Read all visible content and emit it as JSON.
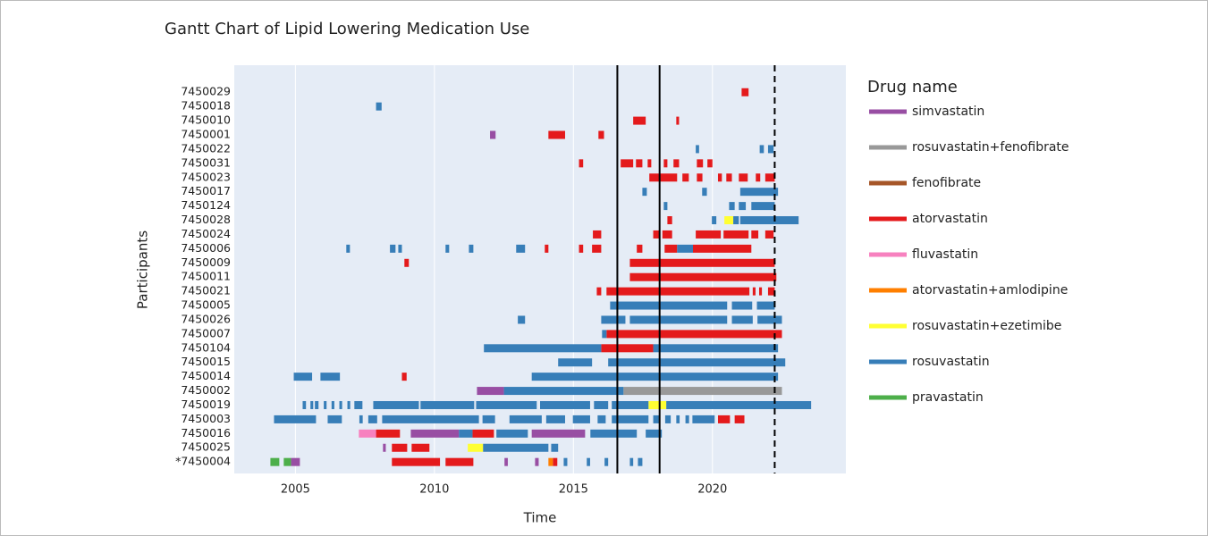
{
  "chart_data": {
    "type": "gantt",
    "title": "Gantt Chart of Lipid Lowering Medication Use",
    "x_label": "Time",
    "y_label": "Participants",
    "legend_title": "Drug name",
    "categories": [
      "7450029",
      "7450018",
      "7450010",
      "7450001",
      "7450022",
      "7450031",
      "7450023",
      "7450017",
      "7450124",
      "7450028",
      "7450024",
      "7450006",
      "7450009",
      "7450011",
      "7450021",
      "7450005",
      "7450026",
      "7450007",
      "7450104",
      "7450015",
      "7450014",
      "7450002",
      "7450019",
      "7450003",
      "7450016",
      "7450025",
      "*7450004"
    ],
    "xlim": [
      2002.8,
      2024.8
    ],
    "xticks": [
      2005,
      2010,
      2015,
      2020
    ],
    "grid": true,
    "reference_lines": [
      {
        "x": 2016.58,
        "dashed": false
      },
      {
        "x": 2018.1,
        "dashed": false
      },
      {
        "x": 2022.24,
        "dashed": true
      }
    ],
    "series": [
      {
        "name": "simvastatin",
        "color": "#984ea3",
        "bars": [
          [
            "7450001",
            2012.0,
            2012.2
          ],
          [
            "7450002",
            2011.53,
            2012.5
          ],
          [
            "7450016",
            2009.15,
            2010.88
          ],
          [
            "7450016",
            2013.5,
            2015.42
          ],
          [
            "7450025",
            2008.15,
            2008.25
          ],
          [
            "*7450004",
            2004.84,
            2005.16
          ],
          [
            "*7450004",
            2012.52,
            2012.64
          ],
          [
            "*7450004",
            2013.62,
            2013.75
          ]
        ]
      },
      {
        "name": "rosuvastatin+fenofibrate",
        "color": "#999999",
        "bars": [
          [
            "7450002",
            2016.8,
            2022.5
          ]
        ]
      },
      {
        "name": "fenofibrate",
        "color": "#a65628",
        "bars": []
      },
      {
        "name": "atorvastatin",
        "color": "#e41a1c",
        "bars": [
          [
            "7450029",
            2021.05,
            2021.3
          ],
          [
            "7450010",
            2017.15,
            2017.6
          ],
          [
            "7450010",
            2018.7,
            2018.8
          ],
          [
            "7450001",
            2014.1,
            2014.7
          ],
          [
            "7450001",
            2015.9,
            2016.1
          ],
          [
            "7450031",
            2015.2,
            2015.35
          ],
          [
            "7450031",
            2016.7,
            2017.15
          ],
          [
            "7450031",
            2017.25,
            2017.48
          ],
          [
            "7450031",
            2017.67,
            2017.8
          ],
          [
            "7450031",
            2018.25,
            2018.38
          ],
          [
            "7450031",
            2018.6,
            2018.8
          ],
          [
            "7450031",
            2019.44,
            2019.66
          ],
          [
            "7450031",
            2019.82,
            2020.0
          ],
          [
            "7450023",
            2017.73,
            2018.73
          ],
          [
            "7450023",
            2018.92,
            2019.15
          ],
          [
            "7450023",
            2019.44,
            2019.64
          ],
          [
            "7450023",
            2020.2,
            2020.34
          ],
          [
            "7450023",
            2020.5,
            2020.7
          ],
          [
            "7450023",
            2020.95,
            2021.27
          ],
          [
            "7450023",
            2021.56,
            2021.72
          ],
          [
            "7450023",
            2021.9,
            2022.24
          ],
          [
            "7450028",
            2018.38,
            2018.55
          ],
          [
            "7450024",
            2015.7,
            2016.0
          ],
          [
            "7450024",
            2017.87,
            2018.1
          ],
          [
            "7450024",
            2018.2,
            2018.55
          ],
          [
            "7450024",
            2019.4,
            2020.3
          ],
          [
            "7450024",
            2020.4,
            2021.3
          ],
          [
            "7450024",
            2021.4,
            2021.65
          ],
          [
            "7450024",
            2021.9,
            2022.2
          ],
          [
            "7450006",
            2013.97,
            2014.1
          ],
          [
            "7450006",
            2015.2,
            2015.35
          ],
          [
            "7450006",
            2015.67,
            2016.0
          ],
          [
            "7450006",
            2017.28,
            2017.48
          ],
          [
            "7450006",
            2018.28,
            2018.73
          ],
          [
            "7450006",
            2019.3,
            2021.4
          ],
          [
            "7450009",
            2008.92,
            2009.08
          ],
          [
            "7450009",
            2017.03,
            2022.24
          ],
          [
            "7450011",
            2017.03,
            2022.3
          ],
          [
            "7450021",
            2015.84,
            2016.0
          ],
          [
            "7450021",
            2016.19,
            2021.33
          ],
          [
            "7450021",
            2021.45,
            2021.55
          ],
          [
            "7450021",
            2021.68,
            2021.78
          ],
          [
            "7450021",
            2022.0,
            2022.24
          ],
          [
            "7450007",
            2016.19,
            2022.5
          ],
          [
            "7450104",
            2016.0,
            2017.87
          ],
          [
            "7450014",
            2008.83,
            2009.0
          ],
          [
            "7450003",
            2020.2,
            2020.63
          ],
          [
            "7450003",
            2020.8,
            2021.15
          ],
          [
            "7450016",
            2007.9,
            2008.76
          ],
          [
            "7450016",
            2011.37,
            2012.14
          ],
          [
            "7450025",
            2008.47,
            2009.02
          ],
          [
            "7450025",
            2009.18,
            2009.82
          ],
          [
            "*7450004",
            2008.47,
            2010.2
          ],
          [
            "*7450004",
            2010.4,
            2011.4
          ],
          [
            "*7450004",
            2014.26,
            2014.42
          ]
        ]
      },
      {
        "name": "fluvastatin",
        "color": "#f781bf",
        "bars": [
          [
            "7450016",
            2007.28,
            2007.9
          ]
        ]
      },
      {
        "name": "atorvastatin+amlodipine",
        "color": "#ff7f00",
        "bars": [
          [
            "*7450004",
            2014.1,
            2014.26
          ]
        ]
      },
      {
        "name": "rosuvastatin+ezetimibe",
        "color": "#ffff33",
        "bars": [
          [
            "7450028",
            2020.43,
            2020.75
          ],
          [
            "7450019",
            2017.7,
            2018.34
          ],
          [
            "7450025",
            2011.2,
            2011.75
          ]
        ]
      },
      {
        "name": "rosuvastatin",
        "color": "#377eb8",
        "bars": [
          [
            "7450018",
            2007.9,
            2008.1
          ],
          [
            "7450022",
            2019.4,
            2019.52
          ],
          [
            "7450022",
            2021.7,
            2021.85
          ],
          [
            "7450022",
            2022.0,
            2022.2
          ],
          [
            "7450017",
            2017.48,
            2017.64
          ],
          [
            "7450017",
            2019.63,
            2019.8
          ],
          [
            "7450017",
            2021.0,
            2022.36
          ],
          [
            "7450124",
            2018.25,
            2018.38
          ],
          [
            "7450124",
            2020.6,
            2020.8
          ],
          [
            "7450124",
            2020.95,
            2021.2
          ],
          [
            "7450124",
            2021.4,
            2022.24
          ],
          [
            "7450028",
            2019.98,
            2020.14
          ],
          [
            "7450028",
            2020.75,
            2020.95
          ],
          [
            "7450028",
            2021.0,
            2023.1
          ],
          [
            "7450006",
            2006.83,
            2006.96
          ],
          [
            "7450006",
            2008.4,
            2008.6
          ],
          [
            "7450006",
            2008.7,
            2008.83
          ],
          [
            "7450006",
            2010.4,
            2010.53
          ],
          [
            "7450006",
            2011.24,
            2011.4
          ],
          [
            "7450006",
            2012.94,
            2013.26
          ],
          [
            "7450006",
            2018.73,
            2019.3
          ],
          [
            "7450005",
            2016.32,
            2020.53
          ],
          [
            "7450005",
            2020.7,
            2021.43
          ],
          [
            "7450005",
            2021.6,
            2022.24
          ],
          [
            "7450026",
            2013.0,
            2013.26
          ],
          [
            "7450026",
            2016.0,
            2016.87
          ],
          [
            "7450026",
            2017.03,
            2020.53
          ],
          [
            "7450026",
            2020.7,
            2021.45
          ],
          [
            "7450026",
            2021.62,
            2022.5
          ],
          [
            "7450007",
            2016.03,
            2016.19
          ],
          [
            "7450104",
            2011.78,
            2016.0
          ],
          [
            "7450104",
            2017.87,
            2022.36
          ],
          [
            "7450015",
            2014.45,
            2015.67
          ],
          [
            "7450015",
            2016.25,
            2022.62
          ],
          [
            "7450014",
            2004.94,
            2005.6
          ],
          [
            "7450014",
            2005.9,
            2006.6
          ],
          [
            "7450014",
            2013.5,
            2022.36
          ],
          [
            "7450002",
            2012.5,
            2016.8
          ],
          [
            "7450019",
            2005.26,
            2005.38
          ],
          [
            "7450019",
            2005.54,
            2005.64
          ],
          [
            "7450019",
            2005.7,
            2005.83
          ],
          [
            "7450019",
            2006.02,
            2006.12
          ],
          [
            "7450019",
            2006.3,
            2006.4
          ],
          [
            "7450019",
            2006.58,
            2006.68
          ],
          [
            "7450019",
            2006.87,
            2006.97
          ],
          [
            "7450019",
            2007.12,
            2007.41
          ],
          [
            "7450019",
            2007.8,
            2009.44
          ],
          [
            "7450019",
            2009.5,
            2011.43
          ],
          [
            "7450019",
            2011.5,
            2013.68
          ],
          [
            "7450019",
            2013.8,
            2015.6
          ],
          [
            "7450019",
            2015.74,
            2016.25
          ],
          [
            "7450019",
            2016.38,
            2017.7
          ],
          [
            "7450019",
            2018.34,
            2023.55
          ],
          [
            "7450003",
            2004.23,
            2005.74
          ],
          [
            "7450003",
            2006.16,
            2006.67
          ],
          [
            "7450003",
            2007.3,
            2007.42
          ],
          [
            "7450003",
            2007.62,
            2007.94
          ],
          [
            "7450003",
            2008.12,
            2011.6
          ],
          [
            "7450003",
            2011.73,
            2012.18
          ],
          [
            "7450003",
            2012.7,
            2013.86
          ],
          [
            "7450003",
            2014.02,
            2014.7
          ],
          [
            "7450003",
            2014.98,
            2015.6
          ],
          [
            "7450003",
            2015.87,
            2016.16
          ],
          [
            "7450003",
            2016.38,
            2017.7
          ],
          [
            "7450003",
            2017.87,
            2018.12
          ],
          [
            "7450003",
            2018.3,
            2018.5
          ],
          [
            "7450003",
            2018.7,
            2018.82
          ],
          [
            "7450003",
            2019.03,
            2019.16
          ],
          [
            "7450003",
            2019.28,
            2020.08
          ],
          [
            "7450016",
            2010.88,
            2011.37
          ],
          [
            "7450016",
            2012.23,
            2013.36
          ],
          [
            "7450016",
            2015.61,
            2017.28
          ],
          [
            "7450016",
            2017.6,
            2018.18
          ],
          [
            "7450025",
            2011.75,
            2014.1
          ],
          [
            "7450025",
            2014.2,
            2014.45
          ],
          [
            "*7450004",
            2014.65,
            2014.78
          ],
          [
            "*7450004",
            2015.48,
            2015.6
          ],
          [
            "*7450004",
            2016.12,
            2016.25
          ],
          [
            "*7450004",
            2017.03,
            2017.15
          ],
          [
            "*7450004",
            2017.32,
            2017.48
          ]
        ]
      },
      {
        "name": "pravastatin",
        "color": "#4daf4a",
        "bars": [
          [
            "*7450004",
            2004.1,
            2004.42
          ],
          [
            "*7450004",
            2004.58,
            2004.84
          ]
        ]
      }
    ]
  }
}
